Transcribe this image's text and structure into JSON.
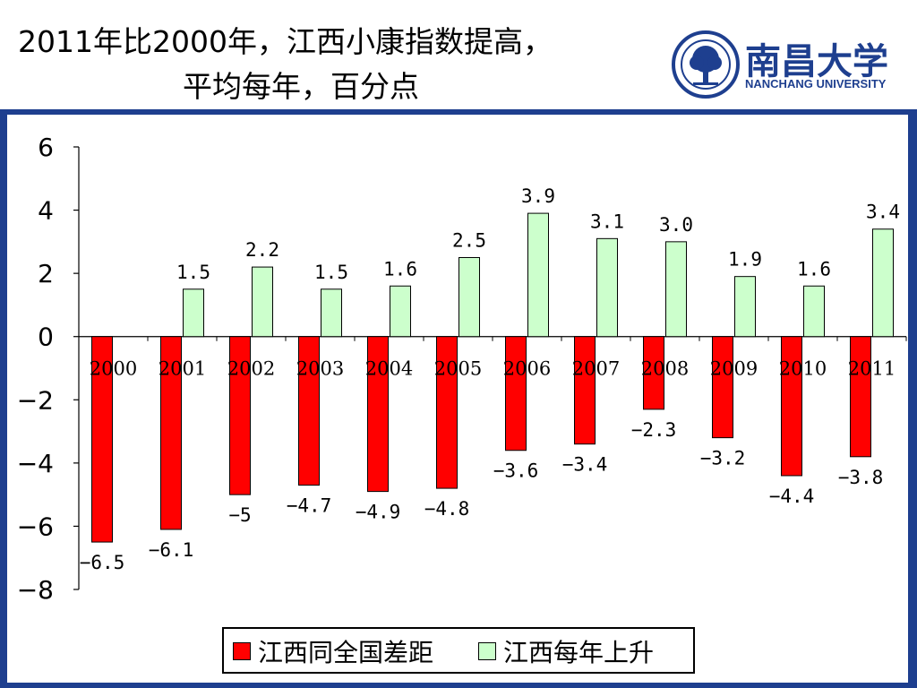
{
  "title": {
    "line1": "2011年比2000年，江西小康指数提高，",
    "line2": "平均每年，百分点"
  },
  "logo": {
    "chinese_name": "南昌大学",
    "english_name": "NANCHANG UNIVERSITY",
    "emblem_text": "NANCHANG UNIVERSITY"
  },
  "colors": {
    "frame": "#1e3f8f",
    "gap_series": "#ff0000",
    "rise_series": "#ccffcc",
    "logo_blue": "#1e3f8f"
  },
  "chart_data": {
    "type": "bar",
    "categories": [
      "2000",
      "2001",
      "2002",
      "2003",
      "2004",
      "2005",
      "2006",
      "2007",
      "2008",
      "2009",
      "2010",
      "2011"
    ],
    "series": [
      {
        "name": "江西同全国差距",
        "values": [
          -6.5,
          -6.1,
          -5,
          -4.7,
          -4.9,
          -4.8,
          -3.6,
          -3.4,
          -2.3,
          -3.2,
          -4.4,
          -3.8
        ],
        "labels": [
          "−6.5",
          "−6.1",
          "−5",
          "−4.7",
          "−4.9",
          "−4.8",
          "−3.6",
          "−3.4",
          "−2.3",
          "−3.2",
          "−4.4",
          "−3.8"
        ]
      },
      {
        "name": "江西每年上升",
        "values": [
          null,
          1.5,
          2.2,
          1.5,
          1.6,
          2.5,
          3.9,
          3.1,
          3.0,
          1.9,
          1.6,
          3.4
        ],
        "labels": [
          "",
          "1.5",
          "2.2",
          "1.5",
          "1.6",
          "2.5",
          "3.9",
          "3.1",
          "3.0",
          "1.9",
          "1.6",
          "3.4"
        ]
      }
    ],
    "ylim": [
      -8,
      6
    ],
    "yticks": [
      6,
      4,
      2,
      0,
      -2,
      -4,
      -6,
      -8
    ],
    "ytick_labels": [
      "6",
      "4",
      "2",
      "0",
      "−2",
      "−4",
      "−6",
      "−8"
    ],
    "xlabel": "",
    "ylabel": "",
    "grid": false,
    "legend_position": "bottom"
  },
  "legend": {
    "items": [
      "江西同全国差距",
      "江西每年上升"
    ]
  }
}
